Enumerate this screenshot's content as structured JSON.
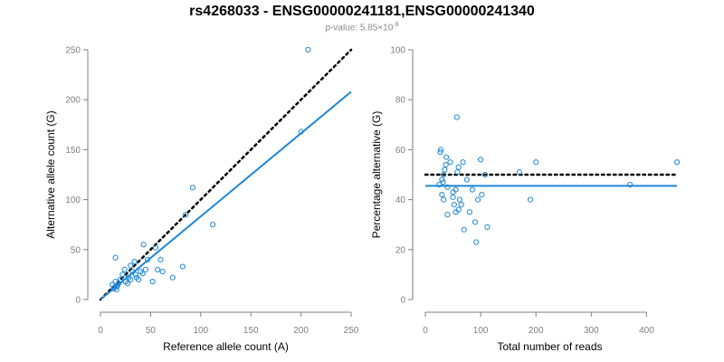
{
  "title": "rs4268033 - ENSG00000241181,ENSG00000241340",
  "subtitle": {
    "prefix": "p-value: 5.85×10",
    "exponent": "-8"
  },
  "colors": {
    "points": "#1f86d6",
    "fit_line": "#1f86d6",
    "reference_line": "#000000",
    "axis": "#7f7f7f"
  },
  "chart_data": [
    {
      "type": "scatter",
      "xlabel": "Reference allele count (A)",
      "ylabel": "Alternative allele count (G)",
      "xlim": [
        0,
        250
      ],
      "ylim": [
        0,
        250
      ],
      "xticks": [
        0,
        50,
        100,
        150,
        200,
        250
      ],
      "yticks": [
        0,
        50,
        100,
        150,
        200,
        250
      ],
      "points": [
        [
          12,
          15
        ],
        [
          14,
          12
        ],
        [
          15,
          18
        ],
        [
          16,
          10
        ],
        [
          17,
          14
        ],
        [
          18,
          16
        ],
        [
          13,
          11
        ],
        [
          16,
          13
        ],
        [
          15,
          42
        ],
        [
          20,
          20
        ],
        [
          22,
          25
        ],
        [
          25,
          18
        ],
        [
          27,
          16
        ],
        [
          28,
          22
        ],
        [
          30,
          34
        ],
        [
          32,
          28
        ],
        [
          35,
          25
        ],
        [
          36,
          22
        ],
        [
          38,
          20
        ],
        [
          40,
          28
        ],
        [
          42,
          26
        ],
        [
          43,
          55
        ],
        [
          45,
          30
        ],
        [
          47,
          40
        ],
        [
          52,
          18
        ],
        [
          55,
          52
        ],
        [
          57,
          30
        ],
        [
          60,
          40
        ],
        [
          62,
          28
        ],
        [
          72,
          22
        ],
        [
          82,
          33
        ],
        [
          85,
          85
        ],
        [
          92,
          112
        ],
        [
          112,
          75
        ],
        [
          200,
          168
        ],
        [
          207,
          250
        ],
        [
          30,
          20
        ],
        [
          34,
          38
        ],
        [
          24,
          30
        ]
      ],
      "series": [
        {
          "kind": "reference",
          "style": "dotted",
          "x": [
            0,
            250
          ],
          "y": [
            0,
            250
          ]
        },
        {
          "kind": "fit",
          "style": "solid",
          "x": [
            0,
            250
          ],
          "y": [
            0,
            208
          ]
        }
      ]
    },
    {
      "type": "scatter",
      "xlabel": "Total number of reads",
      "ylabel": "Percentage alternative (G)",
      "xlim": [
        0,
        450
      ],
      "ylim": [
        0,
        100
      ],
      "xticks": [
        0,
        100,
        200,
        300,
        400
      ],
      "yticks": [
        0,
        20,
        40,
        60,
        80,
        100
      ],
      "points": [
        [
          25,
          46
        ],
        [
          27,
          59
        ],
        [
          28,
          60
        ],
        [
          30,
          48
        ],
        [
          30,
          42
        ],
        [
          32,
          47
        ],
        [
          33,
          50
        ],
        [
          33,
          40
        ],
        [
          35,
          52
        ],
        [
          37,
          54
        ],
        [
          38,
          57
        ],
        [
          40,
          45
        ],
        [
          40,
          34
        ],
        [
          45,
          55
        ],
        [
          50,
          43
        ],
        [
          50,
          41
        ],
        [
          52,
          38
        ],
        [
          55,
          35
        ],
        [
          55,
          44
        ],
        [
          57,
          73
        ],
        [
          58,
          51
        ],
        [
          60,
          53
        ],
        [
          60,
          36
        ],
        [
          62,
          40
        ],
        [
          65,
          38
        ],
        [
          68,
          55
        ],
        [
          70,
          28
        ],
        [
          75,
          48
        ],
        [
          80,
          35
        ],
        [
          85,
          44
        ],
        [
          90,
          31
        ],
        [
          92,
          23
        ],
        [
          95,
          40
        ],
        [
          100,
          56
        ],
        [
          102,
          42
        ],
        [
          108,
          50
        ],
        [
          112,
          29
        ],
        [
          170,
          51
        ],
        [
          190,
          40
        ],
        [
          200,
          55
        ],
        [
          370,
          46
        ],
        [
          455,
          55
        ]
      ],
      "series": [
        {
          "kind": "reference",
          "style": "dotted",
          "x": [
            0,
            455
          ],
          "y": [
            50,
            50
          ]
        },
        {
          "kind": "fit",
          "style": "solid",
          "x": [
            0,
            455
          ],
          "y": [
            45.5,
            45.5
          ]
        }
      ]
    }
  ]
}
